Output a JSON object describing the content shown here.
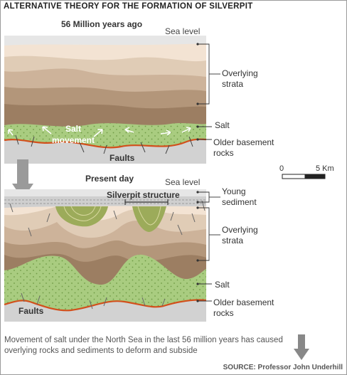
{
  "title": "ALTERNATIVE THEORY FOR THE FORMATION OF SILVERPIT",
  "top_panel": {
    "heading": "56 Million years ago",
    "sea_level": "Sea level",
    "salt_movement": "Salt movement",
    "faults": "Faults"
  },
  "bottom_panel": {
    "heading": "Present day",
    "sea_level": "Sea level",
    "structure": "Silverpit structure",
    "faults": "Faults"
  },
  "labels": {
    "overlying_strata": "Overlying strata",
    "salt": "Salt",
    "older_basement": "Older basement rocks",
    "young_sediment": "Young sediment"
  },
  "scale": {
    "zero": "0",
    "five": "5 Km"
  },
  "caption": "Movement of salt under the North Sea in the last 56 million years has caused overlying rocks and sediments to deform and subside",
  "source": "SOURCE: Professor John Underhill",
  "colors": {
    "sea": "#dcdcdc",
    "layer1": "#f3e3d3",
    "layer2": "#e0ccb6",
    "layer3": "#cdb39a",
    "layer4": "#b3967a",
    "layer5": "#9c7e62",
    "salt": "#a9cc80",
    "basement": "#d2d2d2",
    "fault_line": "#d2501c",
    "young_sediment": "#cfcfcf",
    "arrow": "#8a8a8a"
  }
}
